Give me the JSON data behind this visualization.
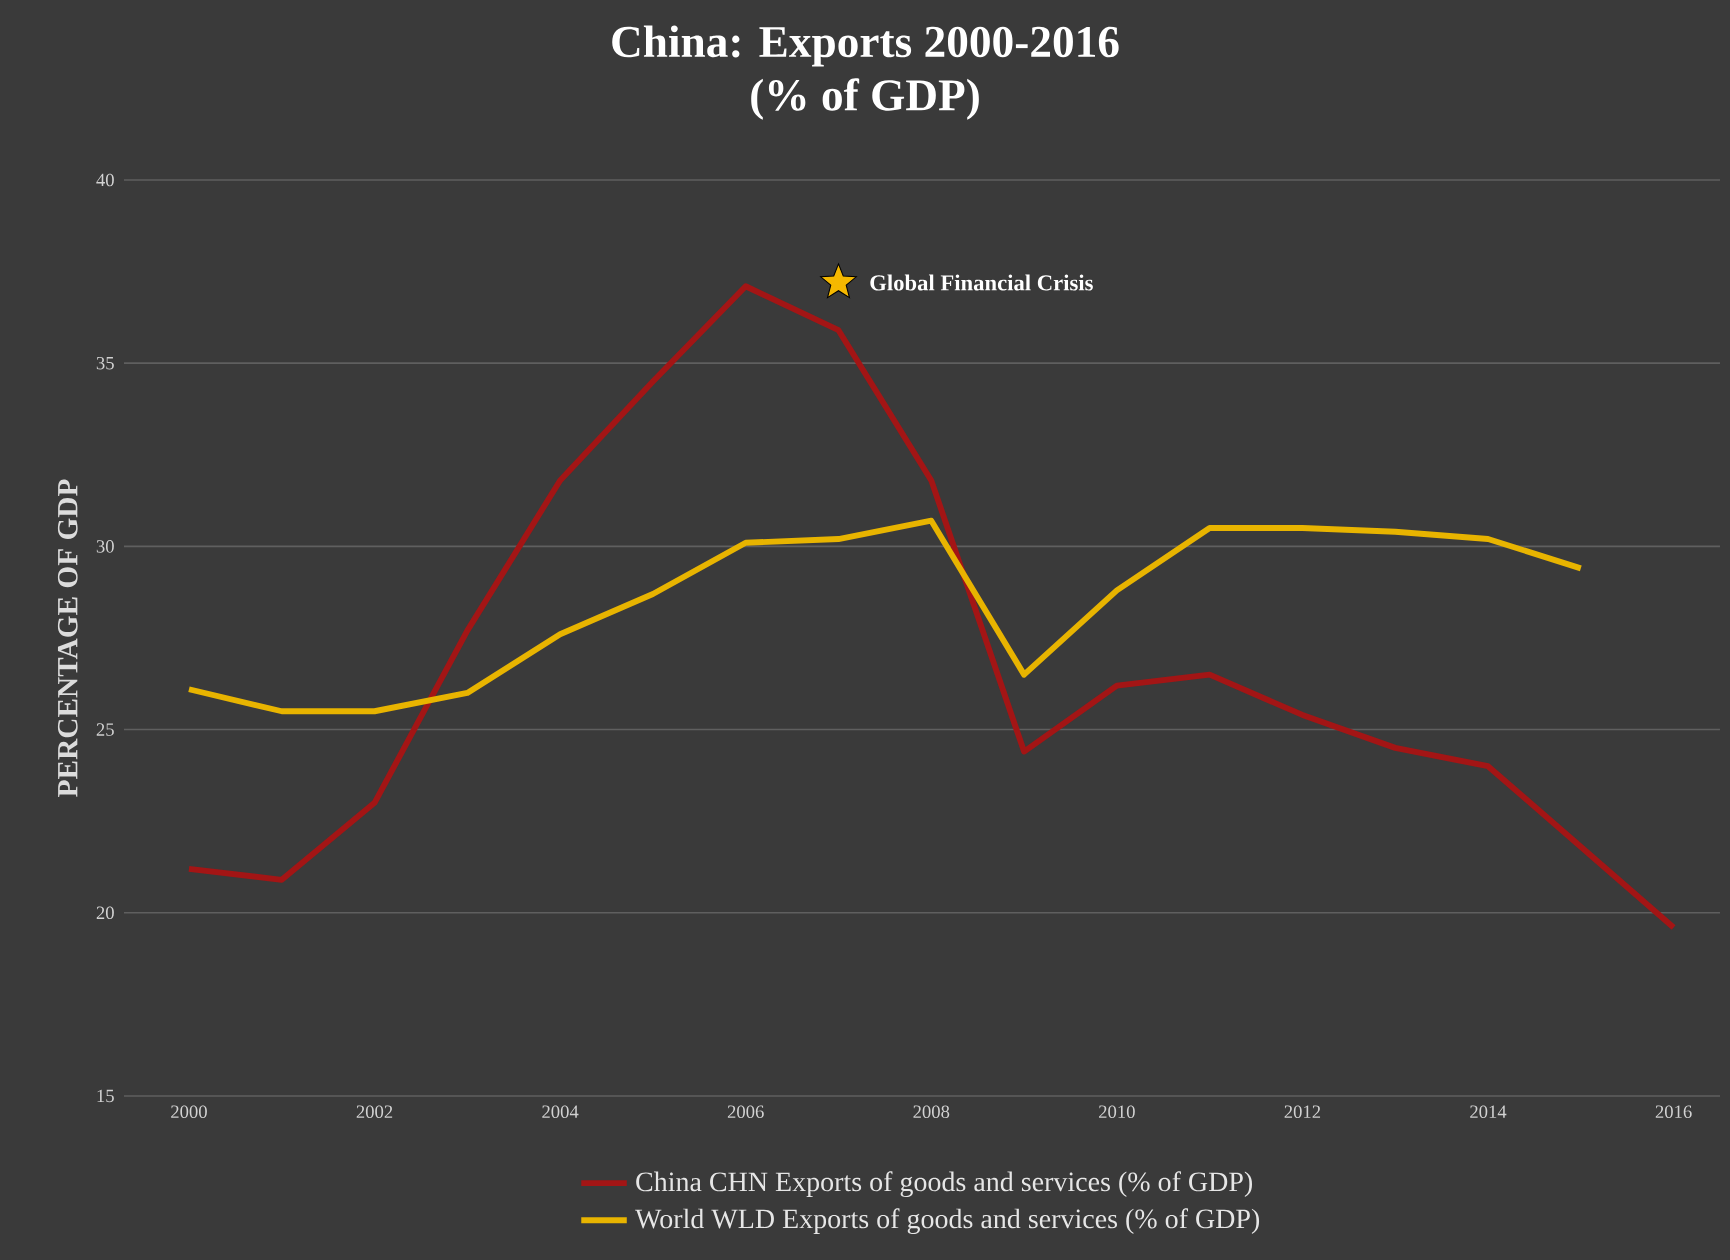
{
  "chart_data": {
    "type": "line",
    "title": "China: Exports 2000-2016",
    "subtitle": "(% of GDP)",
    "ylabel": "PERCENTAGE OF GDP",
    "x": [
      2000,
      2001,
      2002,
      2003,
      2004,
      2005,
      2006,
      2007,
      2008,
      2009,
      2010,
      2011,
      2012,
      2013,
      2014,
      2015,
      2016
    ],
    "series": [
      {
        "name": "China CHN Exports of goods and services (% of GDP)",
        "color": "#a31515",
        "values": [
          21.2,
          20.9,
          23.0,
          27.7,
          31.8,
          34.5,
          37.1,
          35.9,
          31.8,
          24.4,
          26.2,
          26.5,
          25.4,
          24.5,
          24.0,
          21.8,
          19.6
        ]
      },
      {
        "name": "World WLD Exports of goods and services (% of GDP)",
        "color": "#e8b400",
        "values": [
          26.1,
          25.5,
          25.5,
          26.0,
          27.6,
          28.7,
          30.1,
          30.2,
          30.7,
          26.5,
          28.8,
          30.5,
          30.5,
          30.4,
          30.2,
          29.4,
          null
        ]
      }
    ],
    "xlim": [
      1999.3,
      2016.5
    ],
    "xticks": [
      2000,
      2002,
      2004,
      2006,
      2008,
      2010,
      2012,
      2014,
      2016
    ],
    "ylim": [
      15,
      40
    ],
    "yticks": [
      15,
      20,
      25,
      30,
      35,
      40
    ],
    "grid": "y",
    "legend": "bottom",
    "marker": "none",
    "line_style": "solid",
    "annotations": [
      {
        "text": "Global Financial Crisis",
        "x": 2007,
        "y": 37.2
      }
    ]
  }
}
